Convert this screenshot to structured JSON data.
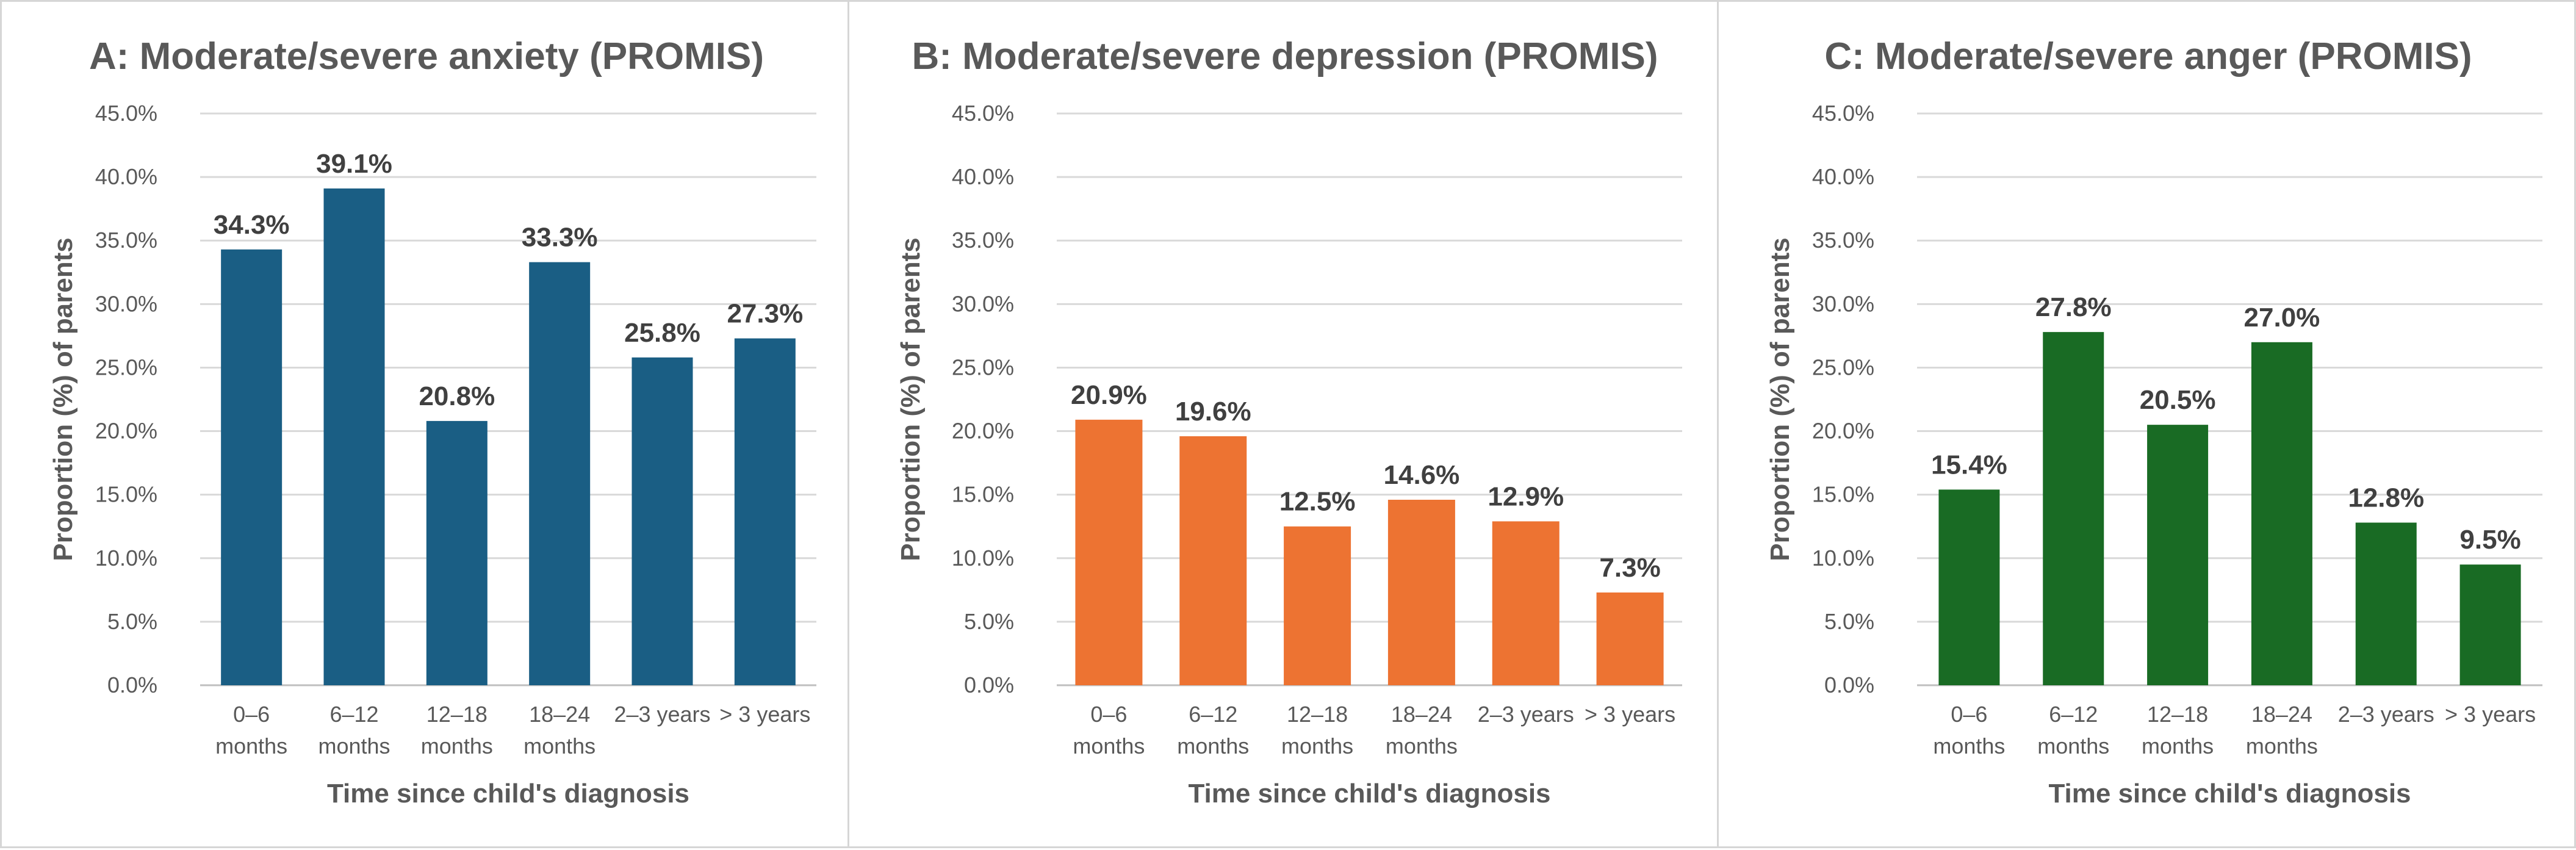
{
  "chart_data": [
    {
      "type": "bar",
      "title": "A: Moderate/severe anxiety (PROMIS)",
      "xlabel": "Time since child's diagnosis",
      "ylabel": "Proportion (%) of parents",
      "categories": [
        [
          "0–6",
          "months"
        ],
        [
          "6–12",
          "months"
        ],
        [
          "12–18",
          "months"
        ],
        [
          "18–24",
          "months"
        ],
        [
          "2–3 years"
        ],
        [
          "> 3 years"
        ]
      ],
      "values": [
        34.3,
        39.1,
        20.8,
        33.3,
        25.8,
        27.3
      ],
      "value_labels": [
        "34.3%",
        "39.1%",
        "20.8%",
        "33.3%",
        "25.8%",
        "27.3%"
      ],
      "yticks": [
        0,
        5,
        10,
        15,
        20,
        25,
        30,
        35,
        40,
        45
      ],
      "ytick_labels": [
        "0.0%",
        "5.0%",
        "10.0%",
        "15.0%",
        "20.0%",
        "25.0%",
        "30.0%",
        "35.0%",
        "40.0%",
        "45.0%"
      ],
      "ylim": [
        0,
        45
      ],
      "grid": true,
      "color": "#1a5e84"
    },
    {
      "type": "bar",
      "title": "B: Moderate/severe depression (PROMIS)",
      "xlabel": "Time since child's diagnosis",
      "ylabel": "Proportion (%) of parents",
      "categories": [
        [
          "0–6",
          "months"
        ],
        [
          "6–12",
          "months"
        ],
        [
          "12–18",
          "months"
        ],
        [
          "18–24",
          "months"
        ],
        [
          "2–3 years"
        ],
        [
          "> 3 years"
        ]
      ],
      "values": [
        20.9,
        19.6,
        12.5,
        14.6,
        12.9,
        7.3
      ],
      "value_labels": [
        "20.9%",
        "19.6%",
        "12.5%",
        "14.6%",
        "12.9%",
        "7.3%"
      ],
      "yticks": [
        0,
        5,
        10,
        15,
        20,
        25,
        30,
        35,
        40,
        45
      ],
      "ytick_labels": [
        "0.0%",
        "5.0%",
        "10.0%",
        "15.0%",
        "20.0%",
        "25.0%",
        "30.0%",
        "35.0%",
        "40.0%",
        "45.0%"
      ],
      "ylim": [
        0,
        45
      ],
      "grid": true,
      "color": "#ed7332"
    },
    {
      "type": "bar",
      "title": "C: Moderate/severe anger (PROMIS)",
      "xlabel": "Time since child's diagnosis",
      "ylabel": "Proportion (%) of parents",
      "categories": [
        [
          "0–6",
          "months"
        ],
        [
          "6–12",
          "months"
        ],
        [
          "12–18",
          "months"
        ],
        [
          "18–24",
          "months"
        ],
        [
          "2–3 years"
        ],
        [
          "> 3 years"
        ]
      ],
      "values": [
        15.4,
        27.8,
        20.5,
        27.0,
        12.8,
        9.5
      ],
      "value_labels": [
        "15.4%",
        "27.8%",
        "20.5%",
        "27.0%",
        "12.8%",
        "9.5%"
      ],
      "yticks": [
        0,
        5,
        10,
        15,
        20,
        25,
        30,
        35,
        40,
        45
      ],
      "ytick_labels": [
        "0.0%",
        "5.0%",
        "10.0%",
        "15.0%",
        "20.0%",
        "25.0%",
        "30.0%",
        "35.0%",
        "40.0%",
        "45.0%"
      ],
      "ylim": [
        0,
        45
      ],
      "grid": true,
      "color": "#196b24"
    }
  ]
}
